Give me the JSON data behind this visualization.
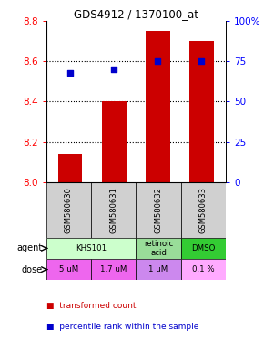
{
  "title": "GDS4912 / 1370100_at",
  "samples": [
    "GSM580630",
    "GSM580631",
    "GSM580632",
    "GSM580633"
  ],
  "bar_values": [
    8.14,
    8.4,
    8.75,
    8.7
  ],
  "bar_bottom": 8.0,
  "percentile_values": [
    68,
    70,
    75,
    75
  ],
  "ylim_left": [
    8.0,
    8.8
  ],
  "ylim_right": [
    0,
    100
  ],
  "yticks_left": [
    8.0,
    8.2,
    8.4,
    8.6,
    8.8
  ],
  "yticks_right": [
    0,
    25,
    50,
    75,
    100
  ],
  "ytick_labels_right": [
    "0",
    "25",
    "50",
    "75",
    "100%"
  ],
  "bar_color": "#cc0000",
  "percentile_color": "#0000cc",
  "agent_defs": [
    [
      0,
      2,
      "KHS101",
      "#ccffcc"
    ],
    [
      2,
      3,
      "retinoic\nacid",
      "#99dd99"
    ],
    [
      3,
      4,
      "DMSO",
      "#33cc33"
    ]
  ],
  "dose_defs": [
    [
      0,
      1,
      "5 uM",
      "#ee66ee"
    ],
    [
      1,
      2,
      "1.7 uM",
      "#ee66ee"
    ],
    [
      2,
      3,
      "1 uM",
      "#cc88ee"
    ],
    [
      3,
      4,
      "0.1 %",
      "#ffaaff"
    ]
  ],
  "sample_bg": "#d0d0d0",
  "hgrid_lines": [
    8.2,
    8.4,
    8.6
  ]
}
